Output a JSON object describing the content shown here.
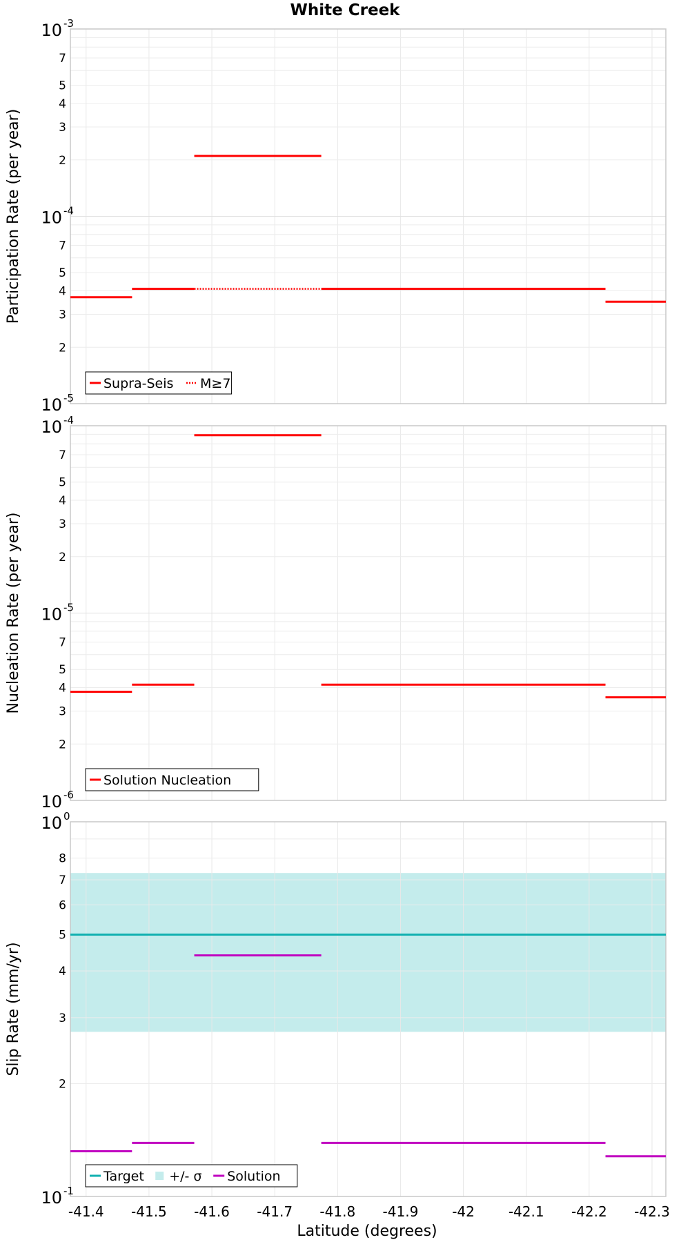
{
  "title": "White Creek",
  "xlabel": "Latitude (degrees)",
  "chart_data": [
    {
      "type": "line",
      "title": "White Creek",
      "ylabel": "Participation Rate (per year)",
      "yscale": "log",
      "xlim": [
        -41.375,
        -42.322
      ],
      "ylim": [
        1e-05,
        0.001
      ],
      "grid": true,
      "legend_position": "bottom-left",
      "series": [
        {
          "name": "Supra-Seis",
          "color": "#ff0000",
          "style": "solid",
          "segments": [
            {
              "x": [
                -41.375,
                -41.473
              ],
              "y": 3.7e-05
            },
            {
              "x": [
                -41.473,
                -41.572
              ],
              "y": 4.1e-05
            },
            {
              "x": [
                -41.572,
                -41.774
              ],
              "y": 0.00021
            },
            {
              "x": [
                -41.774,
                -42.226
              ],
              "y": 4.1e-05
            },
            {
              "x": [
                -42.226,
                -42.322
              ],
              "y": 3.5e-05
            }
          ]
        },
        {
          "name": "M≥7",
          "color": "#ff0000",
          "style": "dotted",
          "segments": [
            {
              "x": [
                -41.375,
                -41.473
              ],
              "y": 3.7e-05
            },
            {
              "x": [
                -41.572,
                -41.774
              ],
              "y": 4.1e-05
            }
          ]
        }
      ]
    },
    {
      "type": "line",
      "ylabel": "Nucleation Rate (per year)",
      "yscale": "log",
      "xlim": [
        -41.375,
        -42.322
      ],
      "ylim": [
        1e-06,
        0.0001
      ],
      "grid": true,
      "legend_position": "bottom-left",
      "series": [
        {
          "name": "Solution Nucleation",
          "color": "#ff0000",
          "style": "solid",
          "segments": [
            {
              "x": [
                -41.375,
                -41.473
              ],
              "y": 3.8e-06
            },
            {
              "x": [
                -41.473,
                -41.572
              ],
              "y": 4.15e-06
            },
            {
              "x": [
                -41.572,
                -41.774
              ],
              "y": 8.9e-05
            },
            {
              "x": [
                -41.774,
                -42.226
              ],
              "y": 4.15e-06
            },
            {
              "x": [
                -42.226,
                -42.322
              ],
              "y": 3.55e-06
            }
          ]
        }
      ]
    },
    {
      "type": "line",
      "ylabel": "Slip Rate (mm/yr)",
      "yscale": "log",
      "xlim": [
        -41.375,
        -42.322
      ],
      "ylim": [
        0.1,
        1
      ],
      "grid": true,
      "legend_position": "bottom-left",
      "band": {
        "name": "+/- σ",
        "color": "#c4ecec",
        "y": [
          0.275,
          0.73
        ]
      },
      "series": [
        {
          "name": "Target",
          "color": "#10b0b0",
          "style": "solid",
          "segments": [
            {
              "x": [
                -41.375,
                -42.322
              ],
              "y": 0.5
            }
          ]
        },
        {
          "name": "Solution",
          "color": "#c000c0",
          "style": "solid",
          "segments": [
            {
              "x": [
                -41.375,
                -41.473
              ],
              "y": 0.132
            },
            {
              "x": [
                -41.473,
                -41.572
              ],
              "y": 0.139
            },
            {
              "x": [
                -41.572,
                -41.774
              ],
              "y": 0.44
            },
            {
              "x": [
                -41.774,
                -42.226
              ],
              "y": 0.139
            },
            {
              "x": [
                -42.226,
                -42.322
              ],
              "y": 0.128
            }
          ]
        }
      ]
    }
  ],
  "x_ticks": [
    "-41.4",
    "-41.5",
    "-41.6",
    "-41.7",
    "-41.8",
    "-41.9",
    "-42",
    "-42.1",
    "-42.2",
    "-42.3"
  ],
  "x_tick_values": [
    -41.4,
    -41.5,
    -41.6,
    -41.7,
    -41.8,
    -41.9,
    -42.0,
    -42.1,
    -42.2,
    -42.3
  ],
  "panels": [
    {
      "decade_labels": [
        {
          "base": "10",
          "exp": "-5"
        },
        {
          "base": "10",
          "exp": "-4"
        },
        {
          "base": "10",
          "exp": "-3"
        }
      ],
      "minor_labels": [
        "2",
        "3",
        "4",
        "5",
        "7",
        "2",
        "3",
        "4",
        "5",
        "7"
      ],
      "legend": [
        {
          "label": "Supra-Seis",
          "kind": "line",
          "color": "#ff0000",
          "style": "solid"
        },
        {
          "label": "M≥7",
          "kind": "line",
          "color": "#ff0000",
          "style": "dotted"
        }
      ]
    },
    {
      "decade_labels": [
        {
          "base": "10",
          "exp": "-6"
        },
        {
          "base": "10",
          "exp": "-5"
        },
        {
          "base": "10",
          "exp": "-4"
        }
      ],
      "minor_labels": [
        "2",
        "3",
        "4",
        "5",
        "7",
        "2",
        "3",
        "4",
        "5",
        "7"
      ],
      "legend": [
        {
          "label": "Solution Nucleation",
          "kind": "line",
          "color": "#ff0000",
          "style": "solid"
        }
      ]
    },
    {
      "decade_labels": [
        {
          "base": "10",
          "exp": "-1"
        },
        {
          "base": "10",
          "exp": "0"
        }
      ],
      "minor_labels": [
        "2",
        "3",
        "4",
        "5",
        "6",
        "7",
        "8"
      ],
      "legend": [
        {
          "label": "Target",
          "kind": "line",
          "color": "#10b0b0",
          "style": "solid"
        },
        {
          "label": "+/- σ",
          "kind": "box",
          "color": "#c4ecec",
          "style": "solid"
        },
        {
          "label": "Solution",
          "kind": "line",
          "color": "#c000c0",
          "style": "solid"
        }
      ]
    }
  ]
}
